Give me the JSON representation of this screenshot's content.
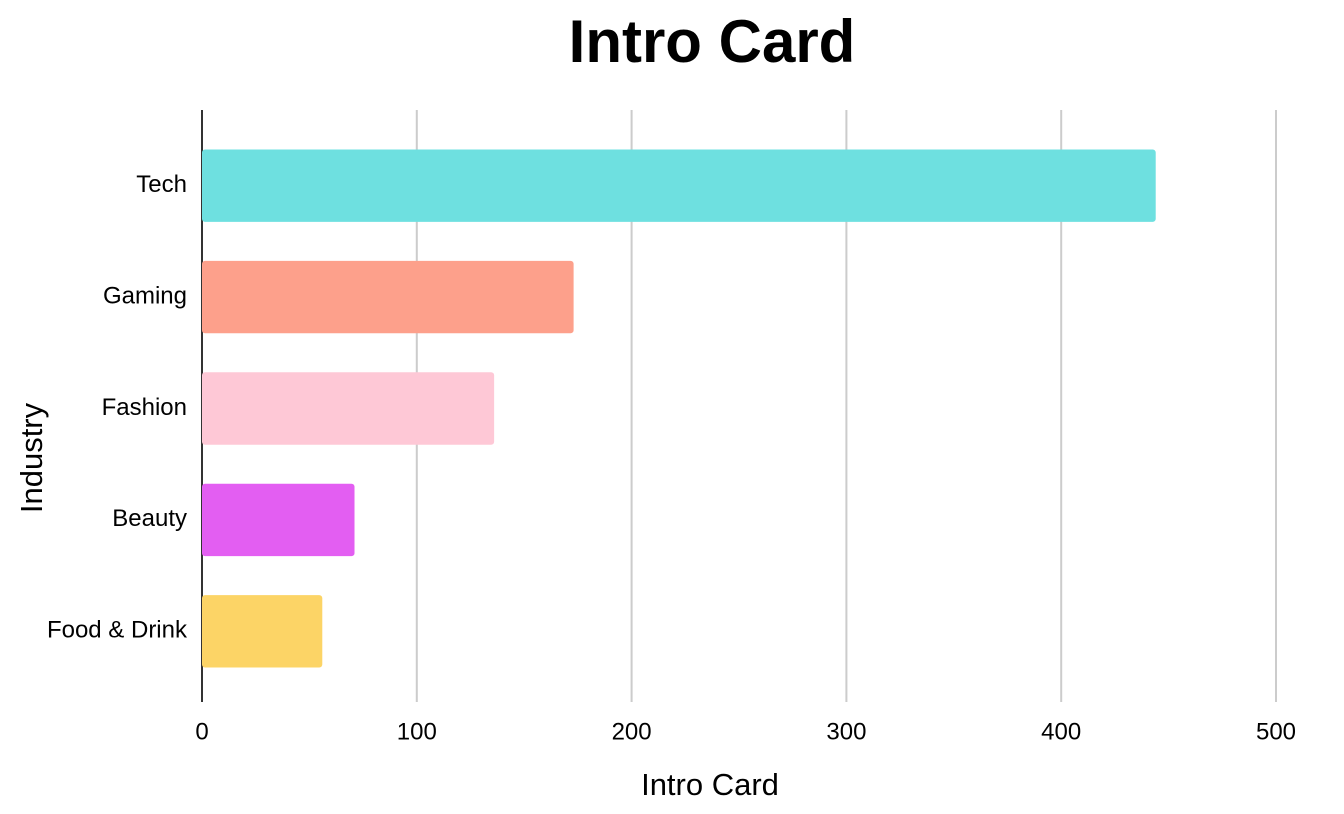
{
  "chart_data": {
    "type": "bar",
    "orientation": "horizontal",
    "title": "Intro Card",
    "x_label": "Intro Card",
    "y_label": "Industry",
    "categories": [
      "Tech",
      "Gaming",
      "Fashion",
      "Beauty",
      "Food & Drink"
    ],
    "values": [
      444,
      173,
      136,
      71,
      56
    ],
    "colors": [
      "#6ee0e0",
      "#fda08b",
      "#fec8d6",
      "#e35ef2",
      "#fcd466"
    ],
    "xlim": [
      0,
      500
    ],
    "xticks": [
      0,
      100,
      200,
      300,
      400,
      500
    ],
    "grid": true
  }
}
